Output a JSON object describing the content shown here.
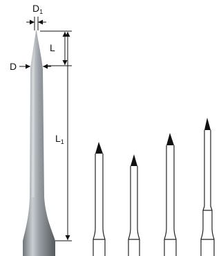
{
  "dimensions": {
    "tip_diameter": {
      "main": "D",
      "sub": "1"
    },
    "flute_length": {
      "main": "L"
    },
    "diameter": {
      "main": "D"
    },
    "overall_length": {
      "main": "L",
      "sub": "1"
    }
  }
}
